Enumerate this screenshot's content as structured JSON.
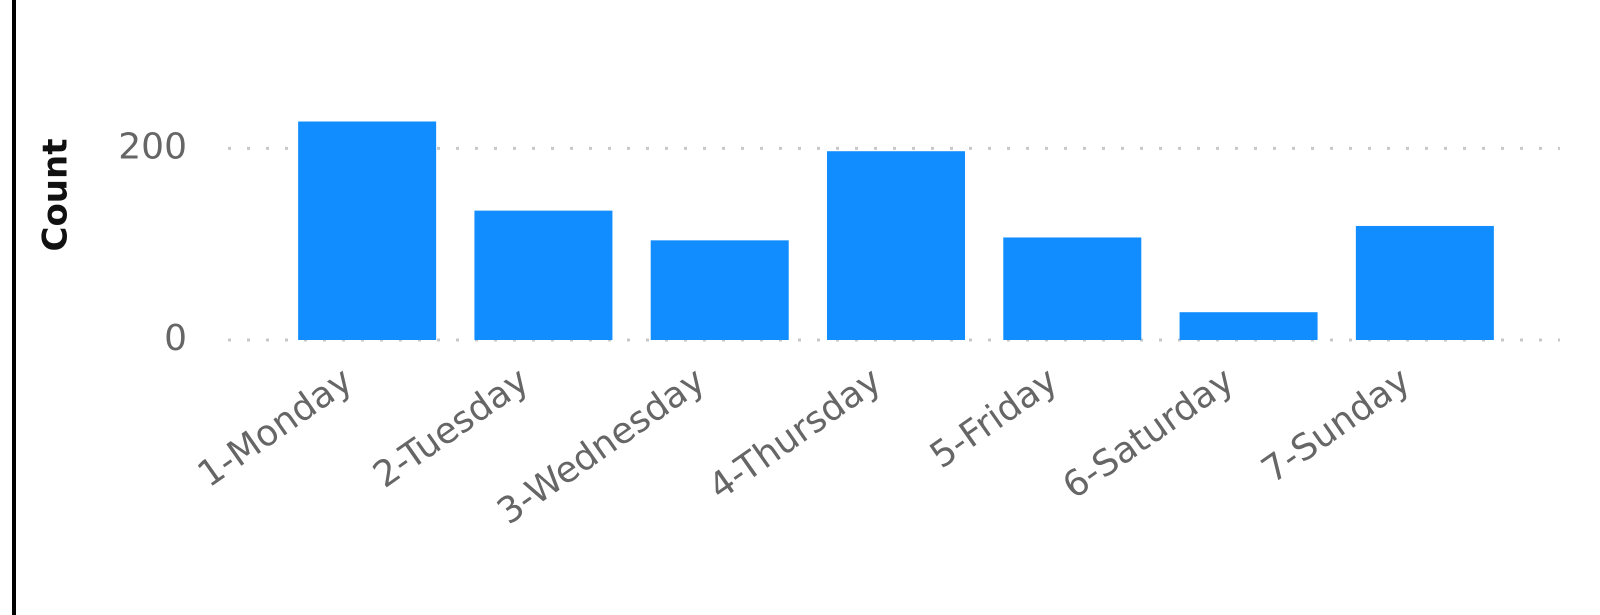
{
  "chart_data": {
    "type": "bar",
    "y_label": "Count",
    "categories": [
      "1-Monday",
      "2-Tuesday",
      "3-Wednesday",
      "4-Thursday",
      "5-Friday",
      "6-Saturday",
      "7-Sunday"
    ],
    "values": [
      228,
      135,
      104,
      197,
      107,
      29,
      119
    ],
    "color": "#118dff",
    "ylim": [
      0,
      240
    ],
    "yticks": [
      0,
      200
    ],
    "grid": true
  }
}
